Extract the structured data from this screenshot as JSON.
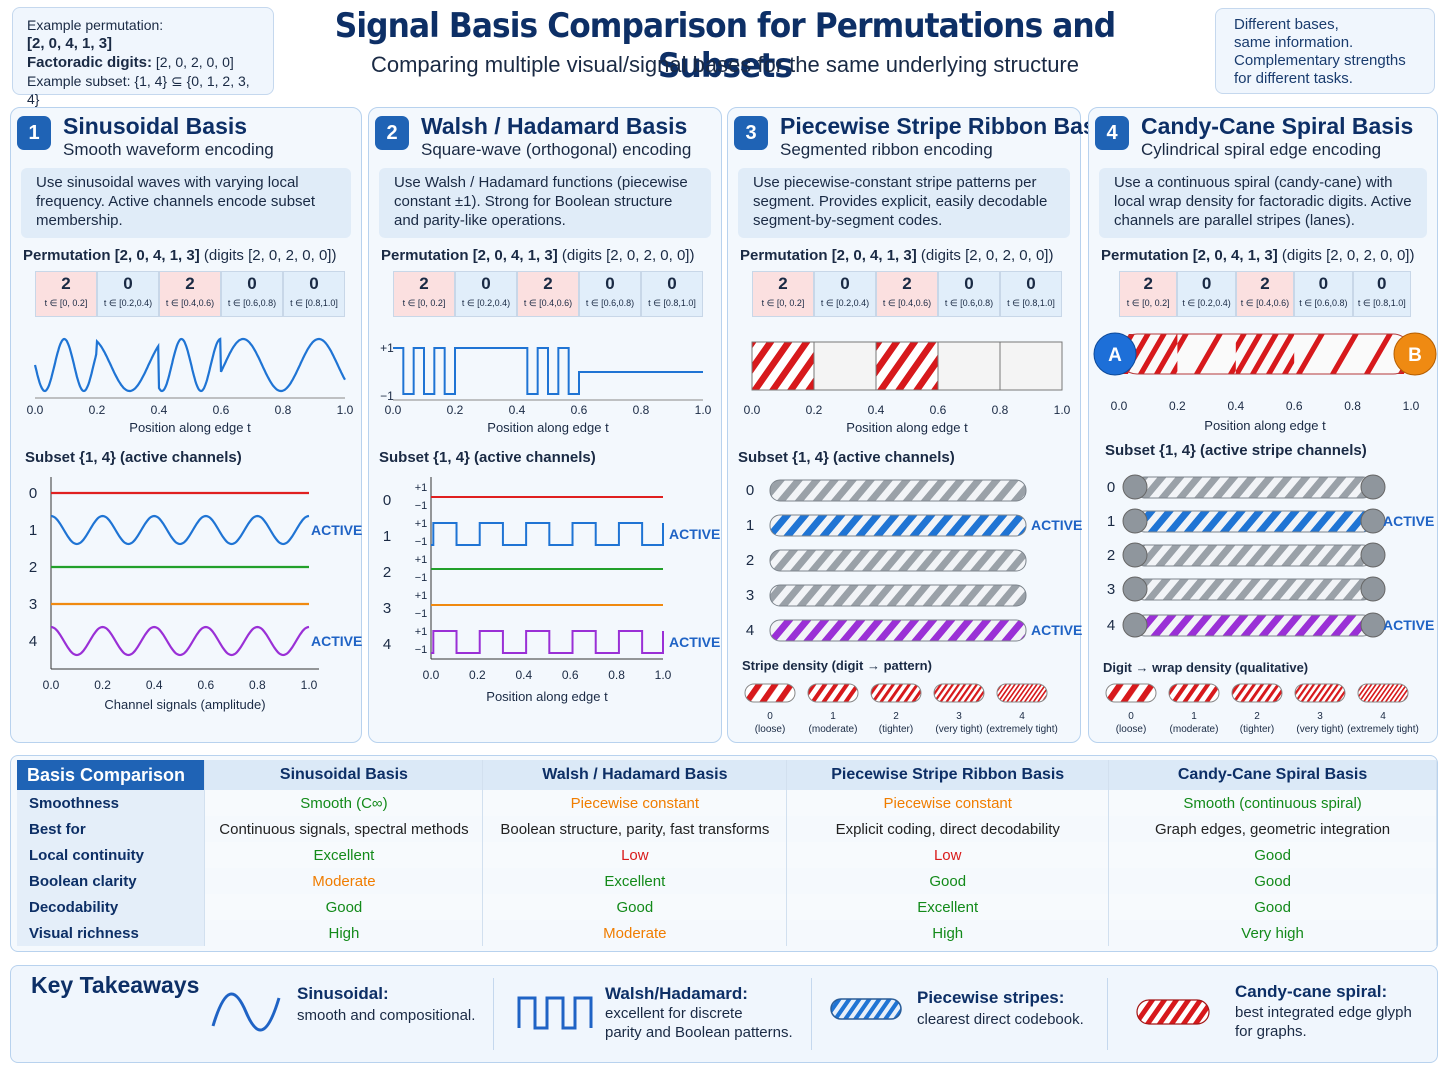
{
  "header": {
    "title": "Signal Basis Comparison for Permutations and Subsets",
    "subtitle": "Comparing multiple visual/signal bases for the same underlying structure",
    "example_perm_label": "Example permutation:",
    "example_perm_value": "[2, 0, 4, 1, 3]",
    "factoradic_label": "Factoradic digits:",
    "factoradic_value": "[2, 0, 2, 0, 0]",
    "subset_label": "Example subset:",
    "subset_value": "{1, 4} ⊆ {0, 1, 2, 3, 4}",
    "note": [
      "Different bases,",
      "same information.",
      "Complementary strengths",
      "for different tasks."
    ]
  },
  "permutation_line": {
    "label": "Permutation",
    "value": "[2, 0, 4, 1, 3]",
    "digits": "(digits [2, 0, 2, 0, 0])"
  },
  "segments": [
    {
      "digit": "2",
      "range": "t ∈ [0, 0.2]"
    },
    {
      "digit": "0",
      "range": "t ∈ [0.2,0.4)"
    },
    {
      "digit": "2",
      "range": "t ∈ [0.4,0.6)"
    },
    {
      "digit": "0",
      "range": "t ∈ [0.6,0.8)"
    },
    {
      "digit": "0",
      "range": "t ∈ [0.8,1.0]"
    }
  ],
  "x_ticks": [
    "0.0",
    "0.2",
    "0.4",
    "0.6",
    "0.8",
    "1.0"
  ],
  "channel_labels": [
    "0",
    "1",
    "2",
    "3",
    "4"
  ],
  "active_label": "ACTIVE",
  "position_label": "Position along edge t",
  "panels": [
    {
      "num": "1",
      "title": "Sinusoidal Basis",
      "subtitle": "Smooth waveform encoding",
      "desc": "Use sinusoidal waves with varying local frequency. Active channels encode subset membership.",
      "subset_title": "Subset {1, 4} (active channels)",
      "channel_axis": "Channel signals (amplitude)"
    },
    {
      "num": "2",
      "title": "Walsh / Hadamard Basis",
      "subtitle": "Square-wave (orthogonal) encoding",
      "desc": "Use Walsh / Hadamard functions (piecewise constant ±1). Strong for Boolean structure and parity-like operations.",
      "subset_title": "Subset {1, 4} (active channels)",
      "plus": "+1",
      "minus": "−1"
    },
    {
      "num": "3",
      "title": "Piecewise Stripe Ribbon Basis",
      "subtitle": "Segmented ribbon encoding",
      "desc": "Use piecewise-constant stripe patterns per segment. Provides explicit, easily decodable segment-by-segment codes.",
      "subset_title": "Subset {1, 4} (active channels)",
      "legend_title": "Stripe density (digit → pattern)"
    },
    {
      "num": "4",
      "title": "Candy-Cane Spiral Basis",
      "subtitle": "Cylindrical spiral edge encoding",
      "desc": "Use a continuous spiral (candy-cane) with local wrap density for factoradic digits. Active channels are parallel stripes (lanes).",
      "subset_title": "Subset {1, 4} (active stripe channels)",
      "legend_title": "Digit → wrap density (qualitative)",
      "end_a": "A",
      "end_b": "B"
    }
  ],
  "density_legend": [
    {
      "digit": "0",
      "label": "(loose)"
    },
    {
      "digit": "1",
      "label": "(moderate)"
    },
    {
      "digit": "2",
      "label": "(tighter)"
    },
    {
      "digit": "3",
      "label": "(very tight)"
    },
    {
      "digit": "4",
      "label": "(extremely tight)"
    }
  ],
  "comparison": {
    "title": "Basis Comparison",
    "columns": [
      "Sinusoidal Basis",
      "Walsh / Hadamard Basis",
      "Piecewise Stripe Ribbon Basis",
      "Candy-Cane Spiral Basis"
    ],
    "rows": [
      {
        "label": "Smoothness",
        "cells": [
          "Smooth (C∞)",
          "Piecewise constant",
          "Piecewise constant",
          "Smooth (continuous spiral)"
        ],
        "colors": [
          "g",
          "o",
          "o",
          "g"
        ]
      },
      {
        "label": "Best for",
        "cells": [
          "Continuous signals, spectral methods",
          "Boolean structure, parity, fast transforms",
          "Explicit coding, direct decodability",
          "Graph edges, geometric integration"
        ],
        "colors": [
          "k",
          "k",
          "k",
          "k"
        ]
      },
      {
        "label": "Local continuity",
        "cells": [
          "Excellent",
          "Low",
          "Low",
          "Good"
        ],
        "colors": [
          "g",
          "r",
          "r",
          "g"
        ]
      },
      {
        "label": "Boolean clarity",
        "cells": [
          "Moderate",
          "Excellent",
          "Good",
          "Good"
        ],
        "colors": [
          "o",
          "g",
          "g",
          "g"
        ]
      },
      {
        "label": "Decodability",
        "cells": [
          "Good",
          "Good",
          "Excellent",
          "Good"
        ],
        "colors": [
          "g",
          "g",
          "g",
          "g"
        ]
      },
      {
        "label": "Visual richness",
        "cells": [
          "High",
          "Moderate",
          "High",
          "Very high"
        ],
        "colors": [
          "g",
          "o",
          "g",
          "g"
        ]
      }
    ]
  },
  "takeaways": {
    "title": "Key Takeaways",
    "items": [
      {
        "head": "Sinusoidal:",
        "text": [
          "smooth and compositional."
        ]
      },
      {
        "head": "Walsh/Hadamard:",
        "text": [
          "excellent for discrete",
          "parity and Boolean patterns."
        ]
      },
      {
        "head": "Piecewise stripes:",
        "text": [
          "clearest direct codebook."
        ]
      },
      {
        "head": "Candy-cane spiral:",
        "text": [
          "best integrated edge glyph",
          "for graphs."
        ]
      }
    ]
  },
  "colors": {
    "accent": "#1f63b5",
    "title": "#0d2f66",
    "ch0": "#e02020",
    "ch1": "#1f74d4",
    "ch2": "#22a02a",
    "ch3": "#f08a10",
    "ch4": "#9a30d6"
  }
}
